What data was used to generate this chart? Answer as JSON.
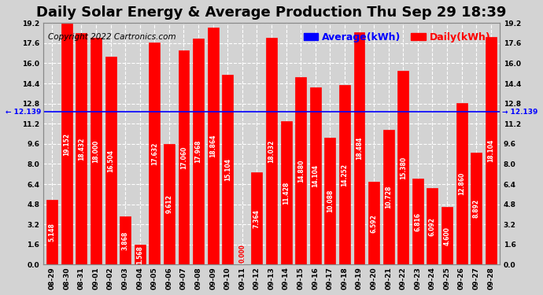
{
  "title": "Daily Solar Energy & Average Production Thu Sep 29 18:39",
  "copyright": "Copyright 2022 Cartronics.com",
  "average_label": "Average(kWh)",
  "daily_label": "Daily(kWh)",
  "average_value": 12.139,
  "categories": [
    "08-29",
    "08-30",
    "08-31",
    "09-01",
    "09-02",
    "09-03",
    "09-04",
    "09-05",
    "09-06",
    "09-07",
    "09-08",
    "09-09",
    "09-10",
    "09-11",
    "09-12",
    "09-13",
    "09-14",
    "09-15",
    "09-16",
    "09-17",
    "09-18",
    "09-19",
    "09-20",
    "09-21",
    "09-22",
    "09-23",
    "09-24",
    "09-25",
    "09-26",
    "09-27",
    "09-28"
  ],
  "values": [
    5.148,
    19.152,
    18.432,
    18.0,
    16.504,
    3.868,
    1.568,
    17.632,
    9.612,
    17.06,
    17.968,
    18.864,
    15.104,
    0.0,
    7.364,
    18.032,
    11.428,
    14.88,
    14.104,
    10.088,
    14.252,
    18.484,
    6.592,
    10.728,
    15.38,
    6.816,
    6.092,
    4.6,
    12.86,
    8.892,
    18.104
  ],
  "bar_color": "#ff0000",
  "bar_edge_color": "#ff0000",
  "average_line_color": "#0000ff",
  "average_text_color": "#0000ff",
  "background_color": "#d3d3d3",
  "grid_color": "#ffffff",
  "ylim": [
    0,
    19.2
  ],
  "yticks": [
    0.0,
    1.6,
    3.2,
    4.8,
    6.4,
    8.0,
    9.6,
    11.2,
    12.8,
    14.4,
    16.0,
    17.6,
    19.2
  ],
  "title_fontsize": 13,
  "tick_fontsize": 6.5,
  "value_fontsize": 5.5,
  "copyright_fontsize": 7.5,
  "legend_fontsize": 9
}
